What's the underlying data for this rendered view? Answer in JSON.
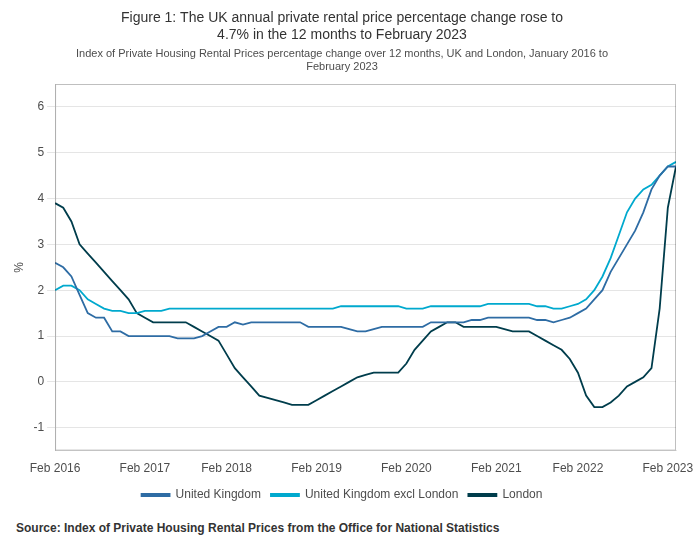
{
  "chart_data": {
    "type": "line",
    "title": "Figure 1: The UK annual private rental price percentage change rose to\n4.7% in the 12 months to February 2023",
    "subtitle": "Index of Private Housing Rental Prices percentage change over 12 months, UK and London, January 2016 to\nFebruary 2023",
    "source": "Source: Index of Private Housing Rental Prices from the Office for National Statistics",
    "ylabel": "%",
    "ylim": [
      -1.5,
      6.5
    ],
    "yticks": [
      -1,
      0,
      1,
      2,
      3,
      4,
      5,
      6
    ],
    "grid": true,
    "legend": "bottom",
    "categories": [
      "Feb 2016",
      null,
      null,
      null,
      null,
      null,
      null,
      null,
      null,
      null,
      null,
      "Feb 2017",
      null,
      null,
      null,
      null,
      null,
      null,
      null,
      null,
      null,
      "Feb 2018",
      null,
      null,
      null,
      null,
      null,
      null,
      null,
      null,
      null,
      null,
      "Feb 2019",
      null,
      null,
      null,
      null,
      null,
      null,
      null,
      null,
      null,
      null,
      "Feb 2020",
      null,
      null,
      null,
      null,
      null,
      null,
      null,
      null,
      null,
      null,
      "Feb 2021",
      null,
      null,
      null,
      null,
      null,
      null,
      null,
      null,
      null,
      "Feb 2022",
      null,
      null,
      null,
      null,
      null,
      null,
      null,
      null,
      null,
      null,
      "Feb 2023",
      null
    ],
    "series": [
      {
        "name": "United Kingdom",
        "color": "#2e6ca4",
        "values": [
          2.6,
          2.5,
          2.3,
          1.9,
          1.5,
          1.4,
          1.4,
          1.1,
          1.1,
          1.0,
          1.0,
          1.0,
          1.0,
          1.0,
          1.0,
          0.95,
          0.95,
          0.95,
          1.0,
          1.1,
          1.2,
          1.2,
          1.3,
          1.25,
          1.3,
          1.3,
          1.3,
          1.3,
          1.3,
          1.3,
          1.3,
          1.2,
          1.2,
          1.2,
          1.2,
          1.2,
          1.15,
          1.1,
          1.1,
          1.15,
          1.2,
          1.2,
          1.2,
          1.2,
          1.2,
          1.2,
          1.3,
          1.3,
          1.3,
          1.3,
          1.3,
          1.35,
          1.35,
          1.4,
          1.4,
          1.4,
          1.4,
          1.4,
          1.4,
          1.35,
          1.35,
          1.3,
          1.35,
          1.4,
          1.5,
          1.6,
          1.8,
          2.0,
          2.4,
          2.7,
          3.0,
          3.3,
          3.7,
          4.2,
          4.5,
          4.7,
          4.7
        ]
      },
      {
        "name": "United Kingdom excl London",
        "color": "#00a9ce",
        "values": [
          2.0,
          2.1,
          2.1,
          2.0,
          1.8,
          1.7,
          1.6,
          1.55,
          1.55,
          1.5,
          1.5,
          1.55,
          1.55,
          1.55,
          1.6,
          1.6,
          1.6,
          1.6,
          1.6,
          1.6,
          1.6,
          1.6,
          1.6,
          1.6,
          1.6,
          1.6,
          1.6,
          1.6,
          1.6,
          1.6,
          1.6,
          1.6,
          1.6,
          1.6,
          1.6,
          1.65,
          1.65,
          1.65,
          1.65,
          1.65,
          1.65,
          1.65,
          1.65,
          1.6,
          1.6,
          1.6,
          1.65,
          1.65,
          1.65,
          1.65,
          1.65,
          1.65,
          1.65,
          1.7,
          1.7,
          1.7,
          1.7,
          1.7,
          1.7,
          1.65,
          1.65,
          1.6,
          1.6,
          1.65,
          1.7,
          1.8,
          2.0,
          2.3,
          2.7,
          3.2,
          3.7,
          4.0,
          4.2,
          4.3,
          4.5,
          4.7,
          4.8
        ]
      },
      {
        "name": "London",
        "color": "#003d4c",
        "values": [
          3.9,
          3.8,
          3.5,
          3.0,
          2.8,
          2.6,
          2.4,
          2.2,
          2.0,
          1.8,
          1.5,
          1.4,
          1.3,
          1.3,
          1.3,
          1.3,
          1.3,
          1.2,
          1.1,
          1.0,
          0.9,
          0.6,
          0.3,
          0.1,
          -0.1,
          -0.3,
          -0.35,
          -0.4,
          -0.45,
          -0.5,
          -0.5,
          -0.5,
          -0.4,
          -0.3,
          -0.2,
          -0.1,
          0.0,
          0.1,
          0.15,
          0.2,
          0.2,
          0.2,
          0.2,
          0.4,
          0.7,
          0.9,
          1.1,
          1.2,
          1.3,
          1.3,
          1.2,
          1.2,
          1.2,
          1.2,
          1.2,
          1.15,
          1.1,
          1.1,
          1.1,
          1.0,
          0.9,
          0.8,
          0.7,
          0.5,
          0.2,
          -0.3,
          -0.55,
          -0.55,
          -0.45,
          -0.3,
          -0.1,
          0.0,
          0.1,
          0.3,
          1.6,
          3.8,
          4.7
        ]
      }
    ]
  }
}
